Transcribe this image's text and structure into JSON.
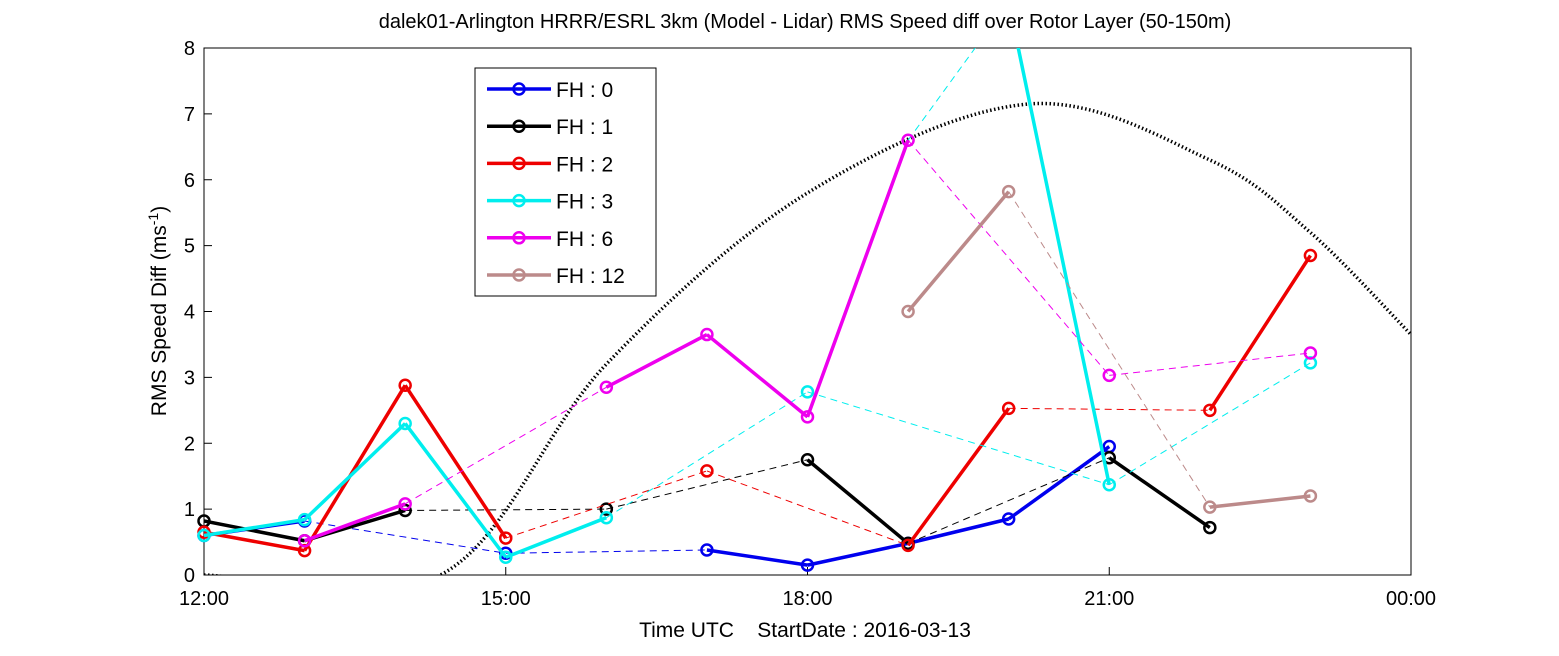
{
  "chart_data": {
    "type": "line",
    "title": "dalek01-Arlington HRRR/ESRL 3km (Model - Lidar) RMS Speed diff over Rotor Layer (50-150m)",
    "xlabel": "Time UTC    StartDate : 2016-03-13",
    "ylabel_main": "RMS Speed Diff (ms",
    "ylabel_sup": "-1",
    "ylabel_close": ")",
    "xlim": [
      12,
      24
    ],
    "ylim": [
      0,
      8
    ],
    "x_ticks": [
      12,
      15,
      18,
      21,
      24
    ],
    "x_tick_labels": [
      "12:00",
      "15:00",
      "18:00",
      "21:00",
      "00:00"
    ],
    "y_ticks": [
      0,
      1,
      2,
      3,
      4,
      5,
      6,
      7,
      8
    ],
    "y_tick_labels": [
      "0",
      "1",
      "2",
      "3",
      "4",
      "5",
      "6",
      "7",
      "8"
    ],
    "grid": false,
    "legend_position": "upper-left",
    "series": [
      {
        "name": "FH : 0",
        "color": "#0000ee",
        "points": [
          [
            12,
            0.6
          ],
          [
            13,
            0.82
          ],
          [
            15,
            0.33
          ],
          [
            17,
            0.38
          ],
          [
            18,
            0.15
          ],
          [
            19,
            0.48
          ],
          [
            20,
            0.85
          ],
          [
            21,
            1.95
          ]
        ]
      },
      {
        "name": "FH : 1",
        "color": "#000000",
        "points": [
          [
            12,
            0.82
          ],
          [
            13,
            0.52
          ],
          [
            14,
            0.98
          ],
          [
            16,
            1.0
          ],
          [
            18,
            1.75
          ],
          [
            19,
            0.48
          ],
          [
            21,
            1.78
          ],
          [
            22,
            0.72
          ]
        ]
      },
      {
        "name": "FH : 2",
        "color": "#ee0000",
        "points": [
          [
            12,
            0.65
          ],
          [
            13,
            0.37
          ],
          [
            14,
            2.88
          ],
          [
            15,
            0.56
          ],
          [
            17,
            1.58
          ],
          [
            19,
            0.45
          ],
          [
            20,
            2.53
          ],
          [
            22,
            2.5
          ],
          [
            23,
            4.85
          ]
        ]
      },
      {
        "name": "FH : 3",
        "color": "#00eeee",
        "points": [
          [
            12,
            0.6
          ],
          [
            13,
            0.84
          ],
          [
            14,
            2.3
          ],
          [
            15,
            0.27
          ],
          [
            16,
            0.87
          ],
          [
            18,
            2.78
          ],
          [
            21,
            1.37
          ],
          [
            23,
            3.22
          ]
        ]
      },
      {
        "name": "FH : 6",
        "color": "#ee00ee",
        "points": [
          [
            13,
            0.52
          ],
          [
            14,
            1.08
          ],
          [
            16,
            2.85
          ],
          [
            17,
            3.65
          ],
          [
            18,
            2.4
          ],
          [
            19,
            6.6
          ],
          [
            21,
            3.03
          ],
          [
            23,
            3.37
          ]
        ]
      },
      {
        "name": "FH : 12",
        "color": "#bc8a8a",
        "points": [
          [
            19,
            4.0
          ],
          [
            20,
            5.82
          ],
          [
            22,
            1.03
          ],
          [
            23,
            1.2
          ]
        ]
      }
    ],
    "offscale_segments": [
      {
        "series": "FH : 3",
        "from": [
          19,
          6.6
        ],
        "to": [
          20,
          8.7
        ],
        "style": "dashed"
      },
      {
        "series": "FH : 3",
        "from": [
          20,
          8.7
        ],
        "to": [
          21,
          1.37
        ],
        "style": "solid"
      }
    ],
    "reference_curve": {
      "style": "dotted",
      "color": "#000000",
      "description_points": [
        [
          12,
          0
        ],
        [
          14.35,
          0
        ],
        [
          16,
          3.2
        ],
        [
          18,
          5.8
        ],
        [
          20.2,
          7.15
        ],
        [
          22,
          6.3
        ],
        [
          23,
          5.2
        ],
        [
          24,
          3.65
        ]
      ]
    }
  }
}
